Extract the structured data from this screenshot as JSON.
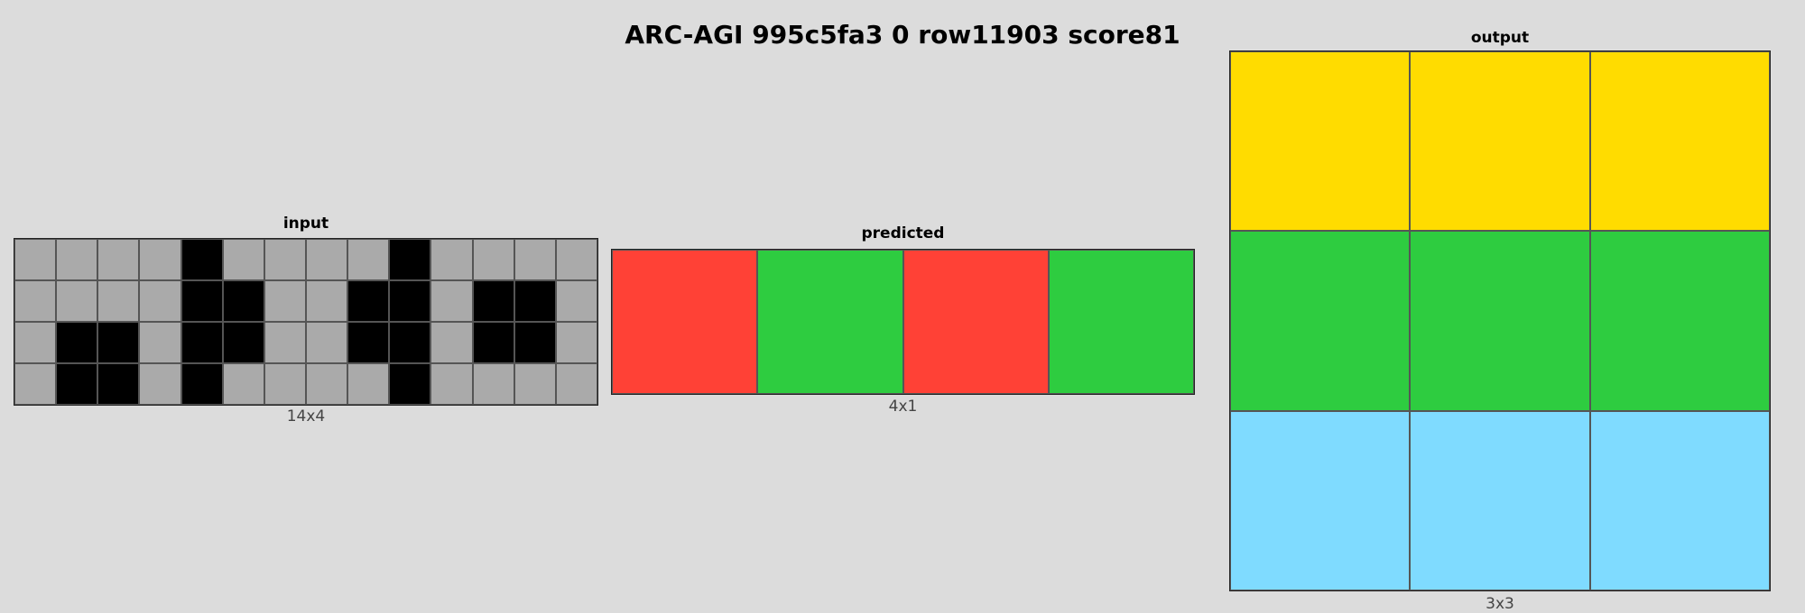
{
  "title": "ARC-AGI 995c5fa3 0 row11903 score81",
  "palette": {
    "0": "#000000",
    "2": "#ff4136",
    "3": "#2ecc40",
    "4": "#ffdc00",
    "5": "#aaaaaa",
    "8": "#7fdbff"
  },
  "panels": {
    "input": {
      "label": "input",
      "dims": "14x4",
      "grid": [
        [
          5,
          5,
          5,
          5,
          0,
          5,
          5,
          5,
          5,
          0,
          5,
          5,
          5,
          5
        ],
        [
          5,
          5,
          5,
          5,
          0,
          0,
          5,
          5,
          0,
          0,
          5,
          0,
          0,
          5
        ],
        [
          5,
          0,
          0,
          5,
          0,
          0,
          5,
          5,
          0,
          0,
          5,
          0,
          0,
          5
        ],
        [
          5,
          0,
          0,
          5,
          0,
          5,
          5,
          5,
          5,
          0,
          5,
          5,
          5,
          5
        ]
      ]
    },
    "predicted": {
      "label": "predicted",
      "dims": "4x1",
      "grid": [
        [
          2,
          3,
          2,
          3
        ]
      ]
    },
    "output": {
      "label": "output",
      "dims": "3x3",
      "grid": [
        [
          4,
          4,
          4
        ],
        [
          3,
          3,
          3
        ],
        [
          8,
          8,
          8
        ]
      ]
    }
  }
}
